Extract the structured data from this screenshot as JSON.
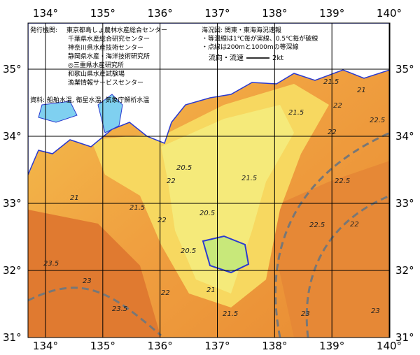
{
  "map": {
    "lon_ticks": [
      {
        "value": 134,
        "label": "134°"
      },
      {
        "value": 135,
        "label": "135°"
      },
      {
        "value": 136,
        "label": "136°"
      },
      {
        "value": 137,
        "label": "137°"
      },
      {
        "value": 138,
        "label": "138°"
      },
      {
        "value": 139,
        "label": "139°"
      },
      {
        "value": 140,
        "label": "140°"
      }
    ],
    "lat_ticks": [
      {
        "value": 35,
        "label": "35°"
      },
      {
        "value": 34,
        "label": "34°"
      },
      {
        "value": 33,
        "label": "33°"
      },
      {
        "value": 32,
        "label": "32°"
      },
      {
        "value": 31,
        "label": "31°"
      }
    ],
    "publisher": {
      "heading": "発行機関:",
      "names": [
        "東京都島しょ農林水産総合センター",
        "千葉県水産総合研究センター",
        "神奈川県水産技術センター",
        "静岡県水産・海洋技術研究所",
        "◎三重県水産研究所",
        "和歌山県水産試験場",
        "漁業情報サービスセンター"
      ]
    },
    "sources": "資料: 船舶水温, 衛星水温, 気象庁解析水温",
    "chart_info": {
      "title": "海況図: 関東・東海海況速報",
      "notes": [
        "・等温線は1℃毎が実線、0.5℃毎が破線",
        "・点線は200mと1000mの等深線"
      ]
    },
    "current_legend": {
      "label": "流向・流速",
      "speed": "2kt"
    },
    "isotherm_labels": [
      "21.5",
      "21",
      "21.5",
      "22",
      "22.5",
      "22",
      "20.5",
      "21",
      "21.5",
      "22",
      "20.5",
      "20.5",
      "21",
      "21.5",
      "22.5",
      "22",
      "23.5",
      "23",
      "23.5",
      "23",
      "22",
      "21.5",
      "22",
      "22.5",
      "23"
    ]
  }
}
